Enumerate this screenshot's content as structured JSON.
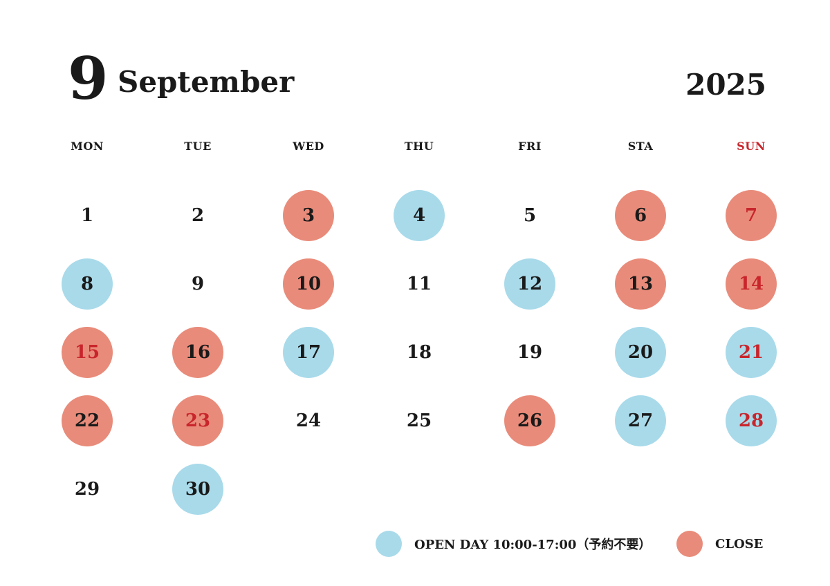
{
  "header": {
    "month_number": "9",
    "month_name": "September",
    "year": "2025"
  },
  "weekdays": [
    "MON",
    "TUE",
    "WED",
    "THU",
    "FRI",
    "STA",
    "SUN"
  ],
  "start_offset": 0,
  "days": [
    {
      "label": "1",
      "status": "none"
    },
    {
      "label": "2",
      "status": "none"
    },
    {
      "label": "3",
      "status": "close"
    },
    {
      "label": "4",
      "status": "open"
    },
    {
      "label": "5",
      "status": "none"
    },
    {
      "label": "6",
      "status": "close"
    },
    {
      "label": "7",
      "status": "close",
      "red": true
    },
    {
      "label": "8",
      "status": "open"
    },
    {
      "label": "9",
      "status": "none"
    },
    {
      "label": "10",
      "status": "close"
    },
    {
      "label": "11",
      "status": "none"
    },
    {
      "label": "12",
      "status": "open"
    },
    {
      "label": "13",
      "status": "close"
    },
    {
      "label": "14",
      "status": "close",
      "red": true
    },
    {
      "label": "15",
      "status": "close",
      "red": true
    },
    {
      "label": "16",
      "status": "close"
    },
    {
      "label": "17",
      "status": "open"
    },
    {
      "label": "18",
      "status": "none"
    },
    {
      "label": "19",
      "status": "none"
    },
    {
      "label": "20",
      "status": "open"
    },
    {
      "label": "21",
      "status": "open",
      "red": true
    },
    {
      "label": "22",
      "status": "close"
    },
    {
      "label": "23",
      "status": "close",
      "red": true
    },
    {
      "label": "24",
      "status": "none"
    },
    {
      "label": "25",
      "status": "none"
    },
    {
      "label": "26",
      "status": "close"
    },
    {
      "label": "27",
      "status": "open"
    },
    {
      "label": "28",
      "status": "open",
      "red": true
    },
    {
      "label": "29",
      "status": "none"
    },
    {
      "label": "30",
      "status": "open"
    }
  ],
  "legend": {
    "open_label": "OPEN DAY 10:00-17:00（予約不要）",
    "close_label": "CLOSE"
  },
  "colors": {
    "open": "#a8daea",
    "close": "#e98b7a",
    "red_text": "#c8262c",
    "text": "#1a1a1a"
  }
}
